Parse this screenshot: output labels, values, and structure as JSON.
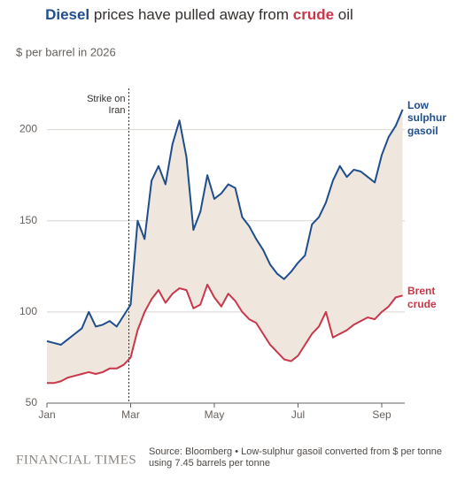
{
  "chart_data": {
    "type": "line",
    "title": [
      "Diesel",
      " prices have pulled away from ",
      "crude",
      " oil"
    ],
    "subtitle": "$ per barrel in 2026",
    "annotation": "Strike on Iran",
    "categories": [
      "Jan",
      null,
      null,
      null,
      null,
      null,
      null,
      null,
      null,
      null,
      null,
      null,
      "Mar",
      null,
      null,
      null,
      null,
      null,
      null,
      null,
      null,
      null,
      null,
      null,
      "May",
      null,
      null,
      null,
      null,
      null,
      null,
      null,
      null,
      null,
      null,
      null,
      "Jul",
      null,
      null,
      null,
      null,
      null,
      null,
      null,
      null,
      null,
      null,
      null,
      "Sep",
      null,
      null,
      null
    ],
    "series": [
      {
        "name": "Low sulphur gasoil",
        "color": "#1f4e8c",
        "values": [
          84,
          83,
          82,
          85,
          88,
          91,
          100,
          92,
          93,
          95,
          92,
          98,
          104,
          150,
          140,
          172,
          180,
          170,
          192,
          205,
          185,
          145,
          155,
          175,
          162,
          165,
          170,
          168,
          152,
          147,
          140,
          134,
          126,
          121,
          118,
          122,
          127,
          131,
          148,
          152,
          160,
          172,
          180,
          174,
          178,
          177,
          174,
          171,
          186,
          196,
          202,
          211
        ]
      },
      {
        "name": "Brent crude",
        "color": "#c8374a",
        "values": [
          61,
          61,
          62,
          64,
          65,
          66,
          67,
          66,
          67,
          69,
          69,
          71,
          75,
          90,
          100,
          107,
          112,
          105,
          110,
          113,
          112,
          102,
          104,
          115,
          108,
          103,
          110,
          106,
          100,
          96,
          94,
          88,
          82,
          78,
          74,
          73,
          76,
          82,
          88,
          92,
          100,
          86,
          88,
          90,
          93,
          95,
          97,
          96,
          100,
          103,
          108,
          109
        ]
      }
    ],
    "fill_color": "#efe7de",
    "ylim": [
      50,
      225
    ],
    "yticks": [
      50,
      100,
      150,
      200
    ],
    "grid": true,
    "source": "Source: Bloomberg • Low-sulphur gasoil converted from $ per tonne using 7.45 barrels per tonne",
    "publisher": "FINANCIAL TIMES"
  }
}
